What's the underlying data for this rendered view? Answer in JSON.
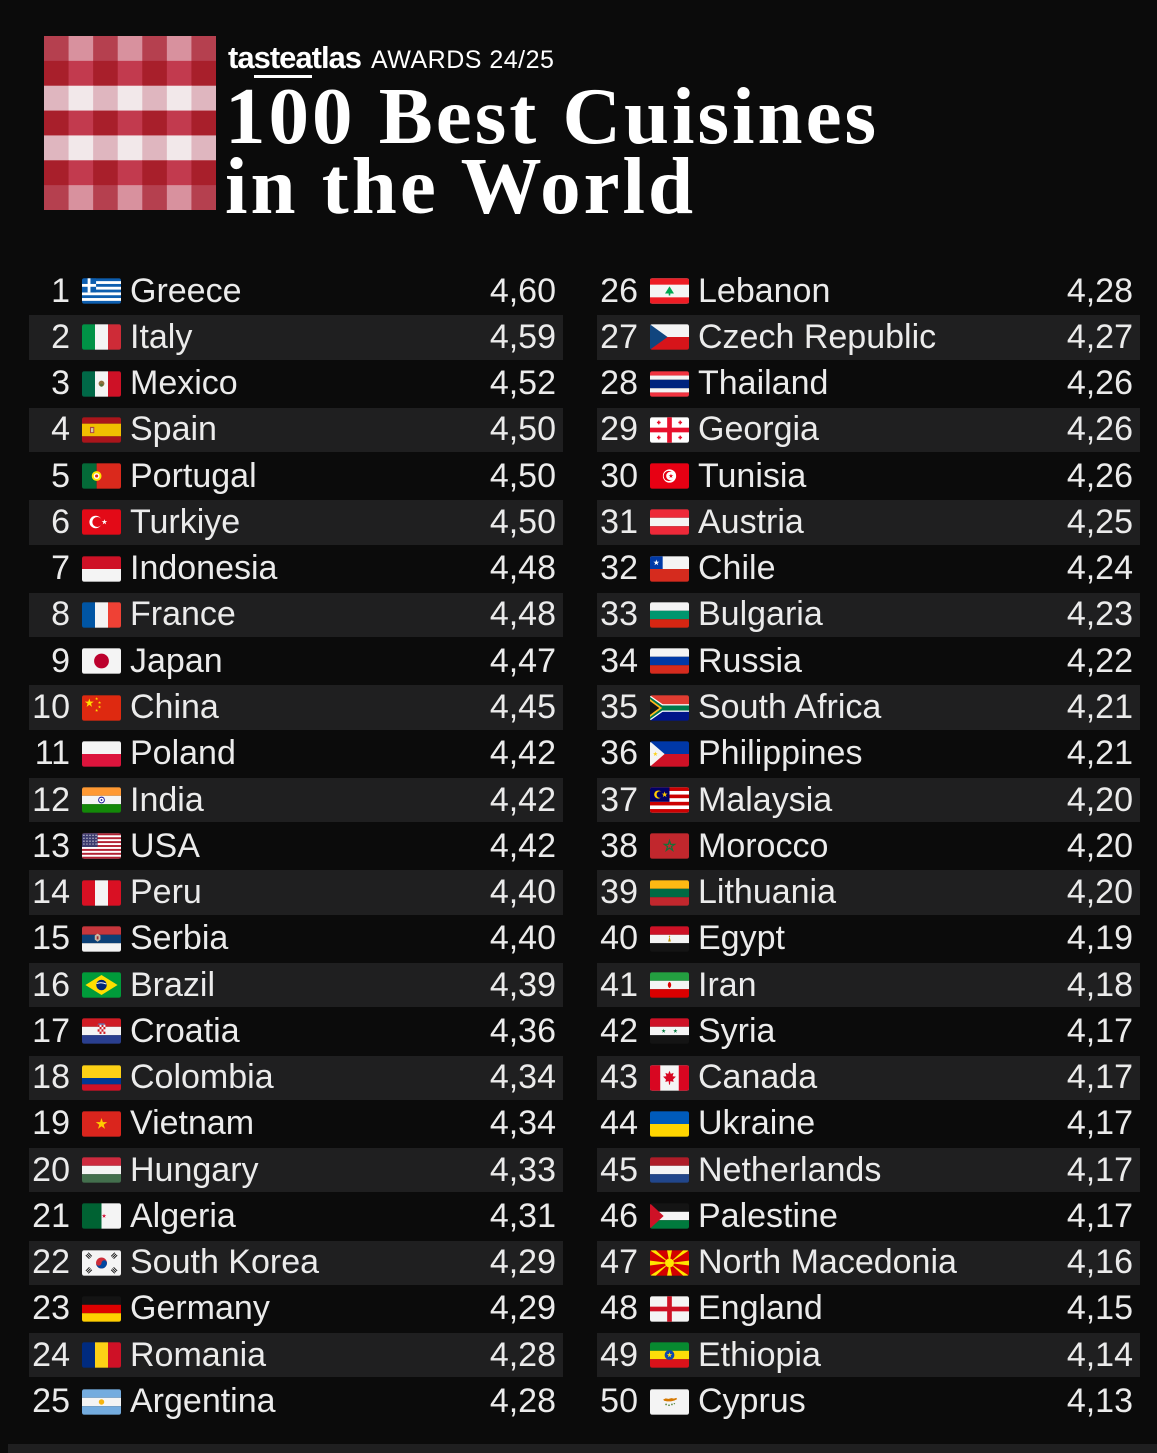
{
  "header": {
    "brand_pre": "ta",
    "brand_underlined": "stea",
    "brand_post": "tlas",
    "awards": "AWARDS 24/25",
    "title_line1": "100 Best Cuisines",
    "title_line2": "in the World"
  },
  "colors": {
    "background": "#0b0b0b",
    "row_alt": "#1f1f20",
    "text": "#ebebeb",
    "brand_red_dark": "#a81f2b",
    "brand_red_mid": "#c23a4e",
    "brand_pink_light": "#f2e8ea"
  },
  "rankings": [
    {
      "rank": "1",
      "country": "Greece",
      "score": "4,60",
      "flag": "gr"
    },
    {
      "rank": "2",
      "country": "Italy",
      "score": "4,59",
      "flag": "it"
    },
    {
      "rank": "3",
      "country": "Mexico",
      "score": "4,52",
      "flag": "mx"
    },
    {
      "rank": "4",
      "country": "Spain",
      "score": "4,50",
      "flag": "es"
    },
    {
      "rank": "5",
      "country": "Portugal",
      "score": "4,50",
      "flag": "pt"
    },
    {
      "rank": "6",
      "country": "Turkiye",
      "score": "4,50",
      "flag": "tr"
    },
    {
      "rank": "7",
      "country": "Indonesia",
      "score": "4,48",
      "flag": "id"
    },
    {
      "rank": "8",
      "country": "France",
      "score": "4,48",
      "flag": "fr"
    },
    {
      "rank": "9",
      "country": "Japan",
      "score": "4,47",
      "flag": "jp"
    },
    {
      "rank": "10",
      "country": "China",
      "score": "4,45",
      "flag": "cn"
    },
    {
      "rank": "11",
      "country": "Poland",
      "score": "4,42",
      "flag": "pl"
    },
    {
      "rank": "12",
      "country": "India",
      "score": "4,42",
      "flag": "in"
    },
    {
      "rank": "13",
      "country": "USA",
      "score": "4,42",
      "flag": "us"
    },
    {
      "rank": "14",
      "country": "Peru",
      "score": "4,40",
      "flag": "pe"
    },
    {
      "rank": "15",
      "country": "Serbia",
      "score": "4,40",
      "flag": "rs"
    },
    {
      "rank": "16",
      "country": "Brazil",
      "score": "4,39",
      "flag": "br"
    },
    {
      "rank": "17",
      "country": "Croatia",
      "score": "4,36",
      "flag": "hr"
    },
    {
      "rank": "18",
      "country": "Colombia",
      "score": "4,34",
      "flag": "co"
    },
    {
      "rank": "19",
      "country": "Vietnam",
      "score": "4,34",
      "flag": "vn"
    },
    {
      "rank": "20",
      "country": "Hungary",
      "score": "4,33",
      "flag": "hu"
    },
    {
      "rank": "21",
      "country": "Algeria",
      "score": "4,31",
      "flag": "dz"
    },
    {
      "rank": "22",
      "country": "South Korea",
      "score": "4,29",
      "flag": "kr"
    },
    {
      "rank": "23",
      "country": "Germany",
      "score": "4,29",
      "flag": "de"
    },
    {
      "rank": "24",
      "country": "Romania",
      "score": "4,28",
      "flag": "ro"
    },
    {
      "rank": "25",
      "country": "Argentina",
      "score": "4,28",
      "flag": "ar"
    },
    {
      "rank": "26",
      "country": "Lebanon",
      "score": "4,28",
      "flag": "lb"
    },
    {
      "rank": "27",
      "country": "Czech Republic",
      "score": "4,27",
      "flag": "cz"
    },
    {
      "rank": "28",
      "country": "Thailand",
      "score": "4,26",
      "flag": "th"
    },
    {
      "rank": "29",
      "country": "Georgia",
      "score": "4,26",
      "flag": "ge"
    },
    {
      "rank": "30",
      "country": "Tunisia",
      "score": "4,26",
      "flag": "tn"
    },
    {
      "rank": "31",
      "country": "Austria",
      "score": "4,25",
      "flag": "at"
    },
    {
      "rank": "32",
      "country": "Chile",
      "score": "4,24",
      "flag": "cl"
    },
    {
      "rank": "33",
      "country": "Bulgaria",
      "score": "4,23",
      "flag": "bg"
    },
    {
      "rank": "34",
      "country": "Russia",
      "score": "4,22",
      "flag": "ru"
    },
    {
      "rank": "35",
      "country": "South Africa",
      "score": "4,21",
      "flag": "za"
    },
    {
      "rank": "36",
      "country": "Philippines",
      "score": "4,21",
      "flag": "ph"
    },
    {
      "rank": "37",
      "country": "Malaysia",
      "score": "4,20",
      "flag": "my"
    },
    {
      "rank": "38",
      "country": "Morocco",
      "score": "4,20",
      "flag": "ma"
    },
    {
      "rank": "39",
      "country": "Lithuania",
      "score": "4,20",
      "flag": "lt"
    },
    {
      "rank": "40",
      "country": "Egypt",
      "score": "4,19",
      "flag": "eg"
    },
    {
      "rank": "41",
      "country": "Iran",
      "score": "4,18",
      "flag": "ir"
    },
    {
      "rank": "42",
      "country": "Syria",
      "score": "4,17",
      "flag": "sy"
    },
    {
      "rank": "43",
      "country": "Canada",
      "score": "4,17",
      "flag": "ca"
    },
    {
      "rank": "44",
      "country": "Ukraine",
      "score": "4,17",
      "flag": "ua"
    },
    {
      "rank": "45",
      "country": "Netherlands",
      "score": "4,17",
      "flag": "nl"
    },
    {
      "rank": "46",
      "country": "Palestine",
      "score": "4,17",
      "flag": "ps"
    },
    {
      "rank": "47",
      "country": "North Macedonia",
      "score": "4,16",
      "flag": "mk"
    },
    {
      "rank": "48",
      "country": "England",
      "score": "4,15",
      "flag": "gbeng"
    },
    {
      "rank": "49",
      "country": "Ethiopia",
      "score": "4,14",
      "flag": "et"
    },
    {
      "rank": "50",
      "country": "Cyprus",
      "score": "4,13",
      "flag": "cy"
    }
  ]
}
